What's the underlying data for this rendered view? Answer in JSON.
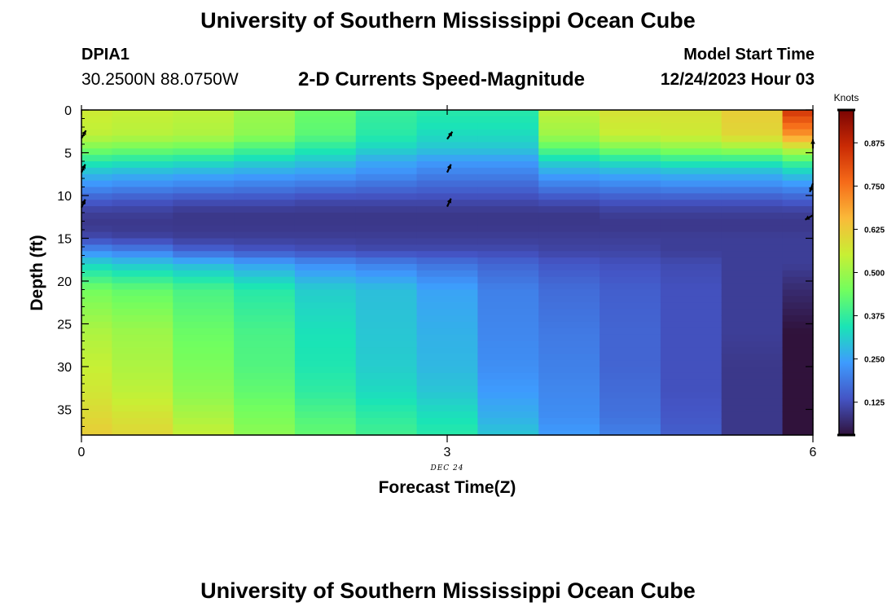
{
  "header": {
    "title": "University of Southern Mississippi Ocean Cube",
    "station": "DPIA1",
    "coordinates": "30.2500N  88.0750W",
    "model_start_label": "Model Start Time",
    "model_start_value": "12/24/2023 Hour 03"
  },
  "footer": {
    "title": "University of Southern Mississippi Ocean Cube"
  },
  "chart_data": {
    "type": "heatmap",
    "title": "2-D Currents Speed-Magnitude",
    "xlabel": "Forecast Time(Z)",
    "ylabel": "Depth (ft)",
    "x_annotation": "DEC 24",
    "xlim": [
      0,
      6
    ],
    "ylim": [
      0,
      38
    ],
    "y_inverted": true,
    "x_ticks": [
      0,
      3,
      6
    ],
    "y_ticks": [
      0,
      5,
      10,
      15,
      20,
      25,
      30,
      35
    ],
    "x": [
      0,
      0.5,
      1,
      1.5,
      2,
      2.5,
      3,
      3.5,
      4,
      4.5,
      5,
      5.5,
      6
    ],
    "depth_profile": [
      0,
      3,
      4.5,
      6,
      7.5,
      9,
      10.5,
      12,
      13.5,
      15,
      16.5,
      18,
      21,
      26,
      30,
      33,
      36,
      38
    ],
    "speed_knots": [
      [
        0.56,
        0.55,
        0.54,
        0.5,
        0.44,
        0.38,
        0.36,
        0.36,
        0.54,
        0.58,
        0.58,
        0.62,
        0.85
      ],
      [
        0.54,
        0.53,
        0.52,
        0.48,
        0.42,
        0.36,
        0.33,
        0.33,
        0.5,
        0.55,
        0.56,
        0.6,
        0.7
      ],
      [
        0.46,
        0.45,
        0.44,
        0.4,
        0.36,
        0.32,
        0.3,
        0.3,
        0.42,
        0.46,
        0.48,
        0.5,
        0.55
      ],
      [
        0.36,
        0.35,
        0.34,
        0.32,
        0.3,
        0.26,
        0.24,
        0.24,
        0.32,
        0.34,
        0.36,
        0.36,
        0.4
      ],
      [
        0.28,
        0.27,
        0.26,
        0.25,
        0.24,
        0.22,
        0.2,
        0.2,
        0.25,
        0.26,
        0.27,
        0.27,
        0.3
      ],
      [
        0.22,
        0.21,
        0.2,
        0.19,
        0.18,
        0.17,
        0.16,
        0.16,
        0.19,
        0.2,
        0.21,
        0.21,
        0.22
      ],
      [
        0.15,
        0.14,
        0.13,
        0.13,
        0.12,
        0.12,
        0.12,
        0.12,
        0.13,
        0.14,
        0.14,
        0.14,
        0.15
      ],
      [
        0.1,
        0.1,
        0.09,
        0.09,
        0.09,
        0.09,
        0.09,
        0.09,
        0.09,
        0.1,
        0.1,
        0.1,
        0.1
      ],
      [
        0.09,
        0.09,
        0.09,
        0.09,
        0.09,
        0.09,
        0.09,
        0.09,
        0.09,
        0.09,
        0.09,
        0.09,
        0.09
      ],
      [
        0.12,
        0.11,
        0.1,
        0.1,
        0.1,
        0.1,
        0.1,
        0.1,
        0.1,
        0.1,
        0.1,
        0.1,
        0.1
      ],
      [
        0.22,
        0.2,
        0.16,
        0.14,
        0.13,
        0.12,
        0.12,
        0.12,
        0.11,
        0.11,
        0.1,
        0.1,
        0.1
      ],
      [
        0.32,
        0.3,
        0.28,
        0.25,
        0.22,
        0.2,
        0.18,
        0.16,
        0.14,
        0.13,
        0.12,
        0.1,
        0.1
      ],
      [
        0.45,
        0.43,
        0.4,
        0.36,
        0.31,
        0.29,
        0.25,
        0.2,
        0.17,
        0.15,
        0.13,
        0.1,
        0.07
      ],
      [
        0.52,
        0.5,
        0.44,
        0.4,
        0.34,
        0.3,
        0.27,
        0.21,
        0.19,
        0.16,
        0.13,
        0.1,
        0.03
      ],
      [
        0.55,
        0.52,
        0.46,
        0.41,
        0.35,
        0.31,
        0.28,
        0.22,
        0.2,
        0.16,
        0.13,
        0.09,
        0.02
      ],
      [
        0.57,
        0.54,
        0.48,
        0.43,
        0.37,
        0.33,
        0.3,
        0.24,
        0.21,
        0.17,
        0.13,
        0.09,
        0.02
      ],
      [
        0.6,
        0.58,
        0.52,
        0.46,
        0.41,
        0.37,
        0.34,
        0.27,
        0.22,
        0.18,
        0.14,
        0.09,
        0.02
      ],
      [
        0.62,
        0.6,
        0.55,
        0.48,
        0.43,
        0.39,
        0.36,
        0.3,
        0.24,
        0.2,
        0.15,
        0.09,
        0.02
      ]
    ],
    "vectors": [
      {
        "x": 0,
        "depth": 3.3,
        "angle_deg": 60
      },
      {
        "x": 0,
        "depth": 7.3,
        "angle_deg": 65
      },
      {
        "x": 0,
        "depth": 11.4,
        "angle_deg": 65
      },
      {
        "x": 3,
        "depth": 3.4,
        "angle_deg": 55
      },
      {
        "x": 3,
        "depth": 7.3,
        "angle_deg": 65
      },
      {
        "x": 3,
        "depth": 11.3,
        "angle_deg": 65
      },
      {
        "x": 6,
        "depth": 4.5,
        "angle_deg": 90
      },
      {
        "x": 6,
        "depth": 8.6,
        "angle_deg": 250
      },
      {
        "x": 6,
        "depth": 12.3,
        "angle_deg": 210
      }
    ],
    "colorbar": {
      "label": "Knots",
      "range": [
        0.03,
        0.97
      ],
      "ticks": [
        0.125,
        0.25,
        0.375,
        0.5,
        0.625,
        0.75,
        0.875
      ],
      "tick_labels": [
        "0.125",
        "0.250",
        "0.375",
        "0.500",
        "0.625",
        "0.750",
        "0.875"
      ],
      "colormap": [
        "#30123b",
        "#4454c4",
        "#3e9bfe",
        "#1ae4b6",
        "#71fe5f",
        "#c8ef34",
        "#faba39",
        "#f66b19",
        "#ca2a04",
        "#7a0403"
      ]
    }
  }
}
